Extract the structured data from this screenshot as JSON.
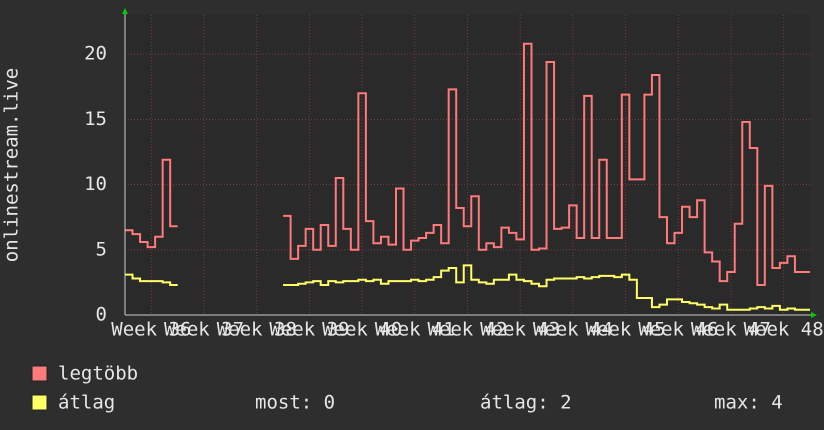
{
  "chart_data": {
    "type": "line",
    "y_label": "onlinestream.live",
    "categories": [
      null,
      null,
      null,
      "Week 36",
      null,
      null,
      null,
      null,
      null,
      null,
      "Week 37",
      null,
      null,
      null,
      null,
      null,
      null,
      "Week 38",
      null,
      null,
      null,
      null,
      null,
      null,
      "Week 39",
      null,
      null,
      null,
      null,
      null,
      null,
      "Week 40",
      null,
      null,
      null,
      null,
      null,
      null,
      "Week 41",
      null,
      null,
      null,
      null,
      null,
      null,
      "Week 42",
      null,
      null,
      null,
      null,
      null,
      null,
      "Week 43",
      null,
      null,
      null,
      null,
      null,
      null,
      "Week 44",
      null,
      null,
      null,
      null,
      null,
      null,
      "Week 45",
      null,
      null,
      null,
      null,
      null,
      null,
      "Week 46",
      null,
      null,
      null,
      null,
      null,
      null,
      "Week 47",
      null,
      null,
      null,
      null,
      null,
      null,
      "Week 48",
      null,
      null,
      null
    ],
    "series": [
      {
        "name": "legtöbb",
        "color": "#ff7a7a",
        "values": [
          6.5,
          6.2,
          5.6,
          5.2,
          6.0,
          11.9,
          6.8,
          null,
          null,
          null,
          null,
          null,
          null,
          null,
          null,
          null,
          null,
          null,
          null,
          null,
          null,
          7.6,
          4.3,
          5.3,
          6.6,
          5.0,
          6.9,
          5.3,
          10.5,
          6.6,
          5.0,
          17.0,
          7.2,
          5.5,
          6.0,
          5.4,
          9.7,
          5.0,
          5.7,
          5.9,
          6.3,
          6.9,
          5.5,
          17.3,
          8.2,
          6.8,
          9.1,
          5.0,
          5.5,
          5.2,
          6.7,
          6.3,
          5.8,
          20.8,
          5.0,
          5.1,
          19.4,
          6.6,
          6.7,
          8.4,
          5.9,
          16.8,
          5.9,
          11.9,
          5.9,
          5.9,
          16.9,
          10.4,
          10.4,
          16.9,
          18.4,
          7.5,
          5.5,
          6.3,
          8.3,
          7.5,
          8.8,
          4.8,
          4.1,
          2.6,
          3.3,
          7.0,
          14.8,
          12.8,
          2.3,
          9.9,
          3.6,
          4.0,
          4.5,
          3.3,
          3.3
        ]
      },
      {
        "name": "átlag",
        "color": "#ffff66",
        "values": [
          3.1,
          2.8,
          2.6,
          2.6,
          2.6,
          2.5,
          2.3,
          null,
          null,
          null,
          null,
          null,
          null,
          null,
          null,
          null,
          null,
          null,
          null,
          null,
          null,
          2.3,
          2.3,
          2.4,
          2.5,
          2.6,
          2.3,
          2.6,
          2.5,
          2.6,
          2.6,
          2.7,
          2.6,
          2.7,
          2.4,
          2.6,
          2.6,
          2.6,
          2.7,
          2.6,
          2.7,
          2.9,
          3.4,
          3.6,
          2.5,
          3.8,
          2.7,
          2.5,
          2.4,
          2.7,
          2.7,
          3.1,
          2.7,
          2.6,
          2.4,
          2.2,
          2.7,
          2.8,
          2.8,
          2.8,
          2.9,
          2.8,
          2.9,
          3.0,
          3.0,
          2.9,
          3.1,
          2.7,
          1.3,
          1.3,
          0.6,
          0.8,
          1.2,
          1.2,
          1.0,
          0.9,
          0.8,
          0.6,
          0.5,
          0.8,
          0.4,
          0.4,
          0.4,
          0.5,
          0.6,
          0.5,
          0.7,
          0.4,
          0.5,
          0.4,
          0.4
        ]
      }
    ],
    "summary": [
      "most: 0",
      "átlag: 2",
      "max: 4"
    ],
    "ylim": [
      0,
      23
    ],
    "yticks": [
      0,
      5,
      10,
      15,
      20
    ],
    "grid": true
  }
}
